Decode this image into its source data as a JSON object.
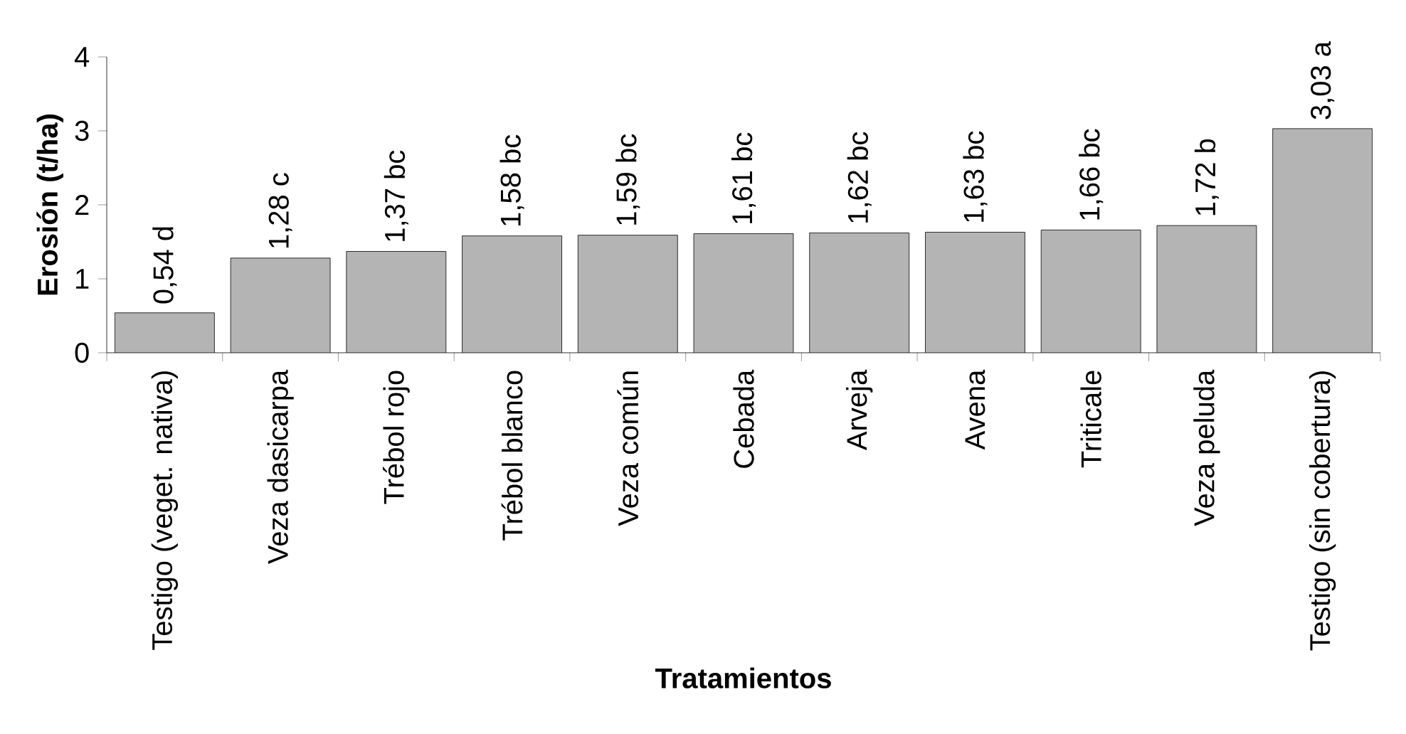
{
  "chart_data": {
    "type": "bar",
    "xlabel": "Tratamientos",
    "ylabel": "Erosión (t/ha)",
    "categories": [
      "Testigo (veget. nativa)",
      "Veza dasicarpa",
      "Trébol rojo",
      "Trébol blanco",
      "Veza común",
      "Cebada",
      "Arveja",
      "Avena",
      "Triticale",
      "Veza peluda",
      "Testigo (sin cobertura)"
    ],
    "values": [
      0.54,
      1.28,
      1.37,
      1.58,
      1.59,
      1.61,
      1.62,
      1.63,
      1.66,
      1.72,
      3.03
    ],
    "value_labels": [
      "0,54 d",
      "1,28 c",
      "1,37 bc",
      "1,58 bc",
      "1,59 bc",
      "1,61 bc",
      "1,62 bc",
      "1,63 bc",
      "1,66 bc",
      "1,72 b",
      "3,03 a"
    ],
    "color": "#b4b4b4",
    "ylim": [
      0,
      4
    ],
    "yticks": [
      0,
      1,
      2,
      3,
      4
    ]
  }
}
